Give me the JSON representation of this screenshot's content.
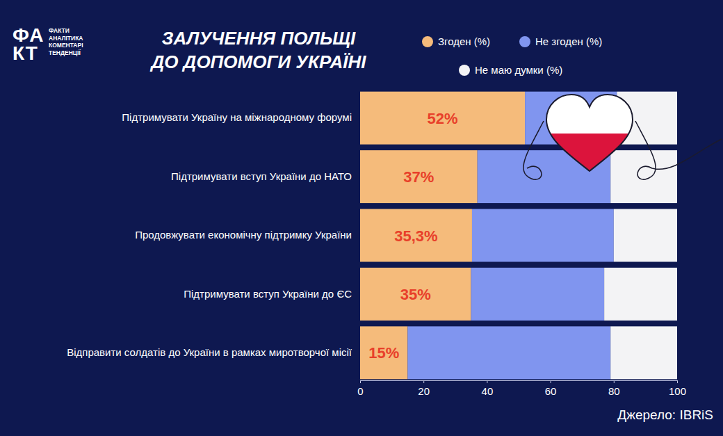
{
  "chart_data": {
    "type": "bar",
    "orientation": "horizontal",
    "stacked": true,
    "title": "ЗАЛУЧЕННЯ ПОЛЬЩІ\nДО ДОПОМОГИ УКРАЇНІ",
    "categories": [
      "Підтримувати Україну на міжнародному форумі",
      "Підтримувати вступ України до НАТО",
      "Продовжувати економічну підтримку України",
      "Підтримувати вступ України до ЄС",
      "Відправити солдатів до України в рамках миротворчої місії"
    ],
    "series": [
      {
        "name": "Згоден (%)",
        "color": "#f5bb7b",
        "values": [
          52,
          37,
          35.3,
          35,
          15
        ],
        "value_labels": [
          "52%",
          "37%",
          "35,3%",
          "35%",
          "15%"
        ]
      },
      {
        "name": "Не згоден (%)",
        "color": "#8095ef",
        "values": [
          29,
          42,
          44.7,
          42,
          64
        ]
      },
      {
        "name": "Не маю думки (%)",
        "color": "#f3f3f5",
        "values": [
          19,
          21,
          20,
          23,
          21
        ]
      }
    ],
    "xlim": [
      0,
      100
    ],
    "xticks": [
      0,
      20,
      40,
      60,
      80,
      100
    ],
    "grid": false,
    "legend": "top-right",
    "data_labels": true,
    "source": "Джерело: IBRiS"
  },
  "brand": {
    "mark_lines": [
      "ФА",
      "КТ"
    ],
    "lines": [
      "ФАКТИ",
      "АНАЛІТИКА",
      "КОМЕНТАРІ",
      "ТЕНДЕНЦІЇ"
    ]
  }
}
